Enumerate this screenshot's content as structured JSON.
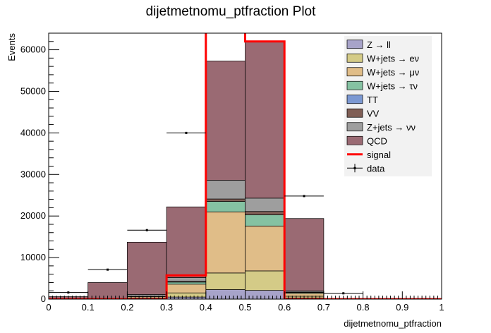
{
  "chart_data": {
    "type": "bar",
    "title": "dijetmetnomu_ptfraction Plot",
    "xlabel": "dijetmetnomu_ptfraction",
    "ylabel": "Events",
    "xlim": [
      0,
      1
    ],
    "ylim": [
      0,
      64000
    ],
    "x_ticks": [
      "0",
      "0.1",
      "0.2",
      "0.3",
      "0.4",
      "0.5",
      "0.6",
      "0.7",
      "0.8",
      "0.9",
      "1"
    ],
    "y_ticks": [
      "0",
      "10000",
      "20000",
      "30000",
      "40000",
      "50000",
      "60000"
    ],
    "bin_edges": [
      0,
      0.1,
      0.2,
      0.3,
      0.4,
      0.5,
      0.6,
      0.7,
      0.8,
      0.9,
      1.0
    ],
    "stacked": true,
    "grid": false,
    "legend_position": "top-right",
    "series": [
      {
        "name": "Z → ll",
        "color": "#a7a3c9",
        "values": [
          0,
          0,
          100,
          500,
          2300,
          2100,
          300,
          0,
          0,
          0
        ]
      },
      {
        "name": "W+jets → eν",
        "color": "#d4cb87",
        "values": [
          0,
          0,
          200,
          1000,
          4000,
          4700,
          400,
          0,
          0,
          0
        ]
      },
      {
        "name": "W+jets → μν",
        "color": "#e0bd88",
        "values": [
          0,
          0,
          300,
          2100,
          14700,
          10800,
          700,
          0,
          0,
          0
        ]
      },
      {
        "name": "W+jets → τν",
        "color": "#85c2a2",
        "values": [
          0,
          0,
          100,
          500,
          2500,
          2700,
          200,
          0,
          0,
          0
        ]
      },
      {
        "name": "TT",
        "color": "#7b98d2",
        "values": [
          0,
          0,
          0,
          0,
          0,
          0,
          0,
          0,
          0,
          0
        ]
      },
      {
        "name": "VV",
        "color": "#7f5e55",
        "values": [
          0,
          0,
          0,
          200,
          600,
          800,
          100,
          0,
          0,
          0
        ]
      },
      {
        "name": "Z+jets → νν",
        "color": "#9e9e9e",
        "values": [
          0,
          100,
          400,
          900,
          4500,
          3200,
          300,
          0,
          0,
          0
        ]
      },
      {
        "name": "QCD",
        "color": "#9a6a73",
        "values": [
          600,
          3900,
          12600,
          17000,
          28700,
          37600,
          17400,
          0,
          0,
          0
        ]
      }
    ],
    "signal": {
      "name": "signal",
      "color": "#ff0000",
      "values": [
        0,
        0,
        0,
        5700,
        72000,
        62000,
        0,
        0,
        0,
        0
      ]
    },
    "data": {
      "name": "data",
      "values": [
        1600,
        7100,
        16600,
        40000,
        0,
        0,
        24800,
        1400,
        0,
        0
      ]
    }
  }
}
